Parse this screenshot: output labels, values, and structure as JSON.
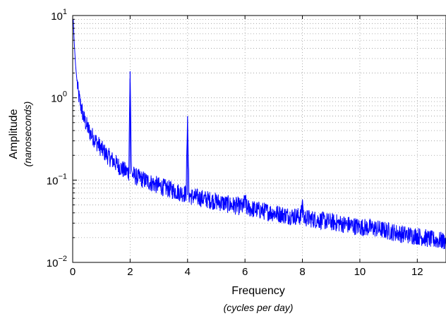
{
  "chart_data": {
    "type": "line",
    "xlabel": "Frequency",
    "xlabel_sub": "(cycles per day)",
    "ylabel": "Amplitude",
    "ylabel_sub": "(nanoseconds)",
    "xlim": [
      0,
      13
    ],
    "ylim": [
      0.01,
      10
    ],
    "yscale": "log",
    "grid": true,
    "x_ticks": [
      0,
      2,
      4,
      6,
      8,
      10,
      12
    ],
    "x_tick_labels": [
      "0",
      "2",
      "4",
      "6",
      "8",
      "10",
      "12"
    ],
    "y_ticks": [
      0.01,
      0.1,
      1,
      10
    ],
    "y_tick_labels": [
      {
        "base": "10",
        "exp": "−2"
      },
      {
        "base": "10",
        "exp": "−1"
      },
      {
        "base": "10",
        "exp": "0"
      },
      {
        "base": "10",
        "exp": "1"
      }
    ],
    "line_color": "#0000ff",
    "series": [
      {
        "x": [
          0.02,
          0.05,
          0.1,
          0.15,
          0.2,
          0.3,
          0.4,
          0.5,
          0.6,
          0.8,
          1.0,
          1.2,
          1.5,
          1.8,
          1.95,
          2.0,
          2.05,
          2.2,
          2.5,
          3.0,
          3.5,
          3.9,
          3.95,
          4.0,
          4.05,
          4.1,
          4.5,
          5.0,
          5.5,
          5.95,
          6.0,
          6.05,
          6.5,
          7.0,
          7.5,
          7.95,
          8.0,
          8.05,
          8.5,
          9.0,
          9.5,
          10.0,
          10.5,
          11.0,
          11.5,
          12.0,
          12.5,
          13.0
        ],
        "y": [
          9.0,
          5.0,
          2.5,
          1.6,
          1.1,
          0.75,
          0.55,
          0.45,
          0.38,
          0.3,
          0.24,
          0.2,
          0.16,
          0.13,
          0.125,
          2.1,
          0.12,
          0.11,
          0.1,
          0.085,
          0.075,
          0.068,
          0.07,
          0.6,
          0.066,
          0.064,
          0.06,
          0.055,
          0.05,
          0.047,
          0.065,
          0.046,
          0.043,
          0.04,
          0.037,
          0.036,
          0.058,
          0.035,
          0.033,
          0.031,
          0.029,
          0.027,
          0.026,
          0.024,
          0.022,
          0.021,
          0.019,
          0.018
        ]
      }
    ]
  }
}
